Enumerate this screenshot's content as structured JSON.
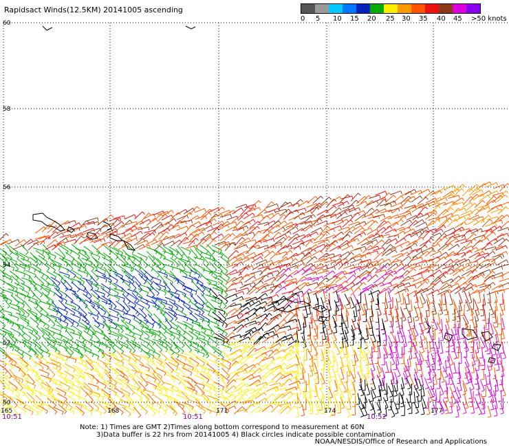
{
  "title": "Rapidsact Winds(12.5KM) 20141005 ascending",
  "legend": {
    "colors": [
      "#555555",
      "#9a9a9a",
      "#00ccff",
      "#0077ff",
      "#0022bb",
      "#00aa00",
      "#ffee00",
      "#ff9900",
      "#ff5500",
      "#ee1111",
      "#8b3a1a",
      "#dd00dd",
      "#8800ee"
    ],
    "labels": [
      "0",
      "5",
      "10",
      "15",
      "20",
      "25",
      "30",
      "35",
      "40",
      "45",
      ">50 knots"
    ]
  },
  "axes": {
    "lat_labels": [
      "60",
      "58",
      "56",
      "54",
      "52",
      "50"
    ],
    "lon_labels": [
      "165",
      "168",
      "171",
      "174",
      "177"
    ],
    "time_labels": [
      "10:51",
      "10:51",
      "10:52"
    ]
  },
  "notes": {
    "line1": "Note: 1) Times are GMT 2)Times along bottom correspond to measurement at 60N",
    "line2": "3)Data buffer is 22 hrs from 20141005 4) Black circles indicate possible contamination",
    "credit": "NOAA/NESDIS/Office of Research and Applications"
  },
  "chart_data": {
    "type": "wind-barb map",
    "title": "Rapidsact Winds(12.5KM) 20141005 ascending",
    "lat_range": [
      50,
      60
    ],
    "lon_range": [
      165,
      179
    ],
    "lat_ticks": [
      60,
      58,
      56,
      54,
      52,
      50
    ],
    "lon_ticks": [
      165,
      168,
      171,
      174,
      177
    ],
    "grid": true,
    "color_scale": {
      "units": "knots",
      "ticks": [
        0,
        5,
        10,
        15,
        20,
        25,
        30,
        35,
        40,
        45,
        50
      ]
    },
    "time_labels": [
      "10:51",
      "10:51",
      "10:52"
    ]
  }
}
